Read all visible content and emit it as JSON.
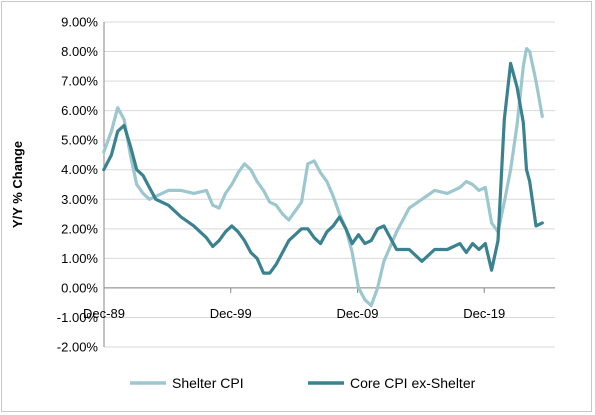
{
  "chart_data": {
    "type": "line",
    "title": "",
    "xlabel": "",
    "ylabel": "Y/Y % Change",
    "xlim": [
      1989.917,
      2025.5
    ],
    "ylim": [
      -2,
      9
    ],
    "y_ticks": [
      -2,
      -1,
      0,
      1,
      2,
      3,
      4,
      5,
      6,
      7,
      8,
      9
    ],
    "y_tick_labels": [
      "-2.00%",
      "-1.00%",
      "0.00%",
      "1.00%",
      "2.00%",
      "3.00%",
      "4.00%",
      "5.00%",
      "6.00%",
      "7.00%",
      "8.00%",
      "9.00%"
    ],
    "x_ticks": [
      1989.917,
      1999.917,
      2009.917,
      2019.917
    ],
    "x_tick_labels": [
      "Dec-89",
      "Dec-99",
      "Dec-09",
      "Dec-19"
    ],
    "grid": "horizontal",
    "legend": "bottom",
    "colors": {
      "shelter": "#9cc7cf",
      "core": "#3a8290",
      "grid": "#d9d9d9",
      "axis": "#868686"
    },
    "series": [
      {
        "name": "Shelter CPI",
        "x": [
          1989.9,
          1990.5,
          1991.0,
          1991.5,
          1992.0,
          1992.5,
          1993.0,
          1993.5,
          1994.0,
          1995.0,
          1996.0,
          1997.0,
          1998.0,
          1998.5,
          1999.0,
          1999.5,
          2000.0,
          2000.5,
          2001.0,
          2001.5,
          2002.0,
          2002.5,
          2003.0,
          2003.5,
          2004.0,
          2004.5,
          2005.0,
          2005.5,
          2006.0,
          2006.5,
          2007.0,
          2007.5,
          2008.0,
          2008.5,
          2009.0,
          2009.5,
          2010.0,
          2010.5,
          2011.0,
          2011.5,
          2012.0,
          2013.0,
          2014.0,
          2015.0,
          2016.0,
          2017.0,
          2018.0,
          2018.5,
          2019.0,
          2019.5,
          2020.0,
          2020.5,
          2021.0,
          2021.5,
          2022.0,
          2022.5,
          2023.0,
          2023.25,
          2023.5,
          2024.0,
          2024.5
        ],
        "values": [
          4.6,
          5.3,
          6.1,
          5.7,
          4.5,
          3.5,
          3.2,
          3.0,
          3.1,
          3.3,
          3.3,
          3.2,
          3.3,
          2.8,
          2.7,
          3.2,
          3.5,
          3.9,
          4.2,
          4.0,
          3.6,
          3.3,
          2.9,
          2.8,
          2.5,
          2.3,
          2.6,
          2.9,
          4.2,
          4.3,
          3.9,
          3.6,
          3.1,
          2.5,
          2.0,
          1.2,
          0.0,
          -0.4,
          -0.6,
          0.0,
          0.9,
          1.9,
          2.7,
          3.0,
          3.3,
          3.2,
          3.4,
          3.6,
          3.5,
          3.3,
          3.4,
          2.2,
          1.9,
          2.9,
          4.0,
          5.5,
          7.5,
          8.1,
          8.0,
          7.0,
          5.8
        ]
      },
      {
        "name": "Core CPI ex-Shelter",
        "x": [
          1989.9,
          1990.5,
          1991.0,
          1991.5,
          1992.0,
          1992.5,
          1993.0,
          1993.5,
          1994.0,
          1995.0,
          1996.0,
          1997.0,
          1998.0,
          1998.5,
          1999.0,
          1999.5,
          2000.0,
          2000.5,
          2001.0,
          2001.5,
          2002.0,
          2002.5,
          2003.0,
          2003.5,
          2004.0,
          2004.5,
          2005.0,
          2005.5,
          2006.0,
          2006.5,
          2007.0,
          2007.5,
          2008.0,
          2008.5,
          2009.0,
          2009.5,
          2010.0,
          2010.5,
          2011.0,
          2011.5,
          2012.0,
          2013.0,
          2014.0,
          2015.0,
          2016.0,
          2017.0,
          2018.0,
          2018.5,
          2019.0,
          2019.5,
          2020.0,
          2020.5,
          2021.0,
          2021.5,
          2022.0,
          2022.5,
          2023.0,
          2023.25,
          2023.5,
          2024.0,
          2024.5
        ],
        "values": [
          4.0,
          4.5,
          5.3,
          5.5,
          4.8,
          4.0,
          3.8,
          3.4,
          3.0,
          2.8,
          2.4,
          2.1,
          1.7,
          1.4,
          1.6,
          1.9,
          2.1,
          1.9,
          1.6,
          1.2,
          1.0,
          0.5,
          0.5,
          0.8,
          1.2,
          1.6,
          1.8,
          2.0,
          2.0,
          1.7,
          1.5,
          1.9,
          2.1,
          2.4,
          2.0,
          1.5,
          1.8,
          1.5,
          1.6,
          2.0,
          2.1,
          1.3,
          1.3,
          0.9,
          1.3,
          1.3,
          1.5,
          1.2,
          1.5,
          1.3,
          1.5,
          0.6,
          1.6,
          5.7,
          7.6,
          6.8,
          5.6,
          4.0,
          3.6,
          2.1,
          2.2
        ]
      }
    ]
  }
}
